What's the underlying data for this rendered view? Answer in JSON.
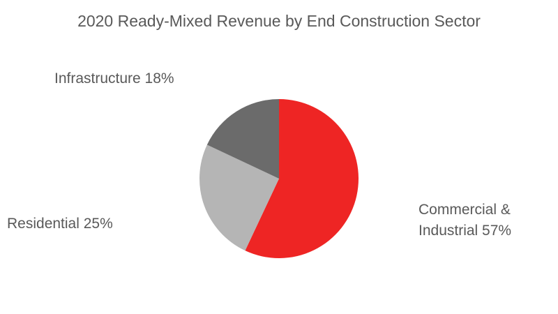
{
  "chart_data": {
    "type": "pie",
    "title": "2020 Ready-Mixed Revenue by End Construction Sector",
    "categories": [
      "Commercial & Industrial",
      "Residential",
      "Infrastructure"
    ],
    "values": [
      57,
      25,
      18
    ],
    "unit": "%",
    "colors": [
      "#ee2524",
      "#b5b5b5",
      "#6b6b6b"
    ],
    "labels": [
      {
        "line1": "Commercial &",
        "line2": "Industrial 57%"
      },
      {
        "line1": "Residential 25%"
      },
      {
        "line1": "Infrastructure 18%"
      }
    ],
    "legend": "none"
  }
}
